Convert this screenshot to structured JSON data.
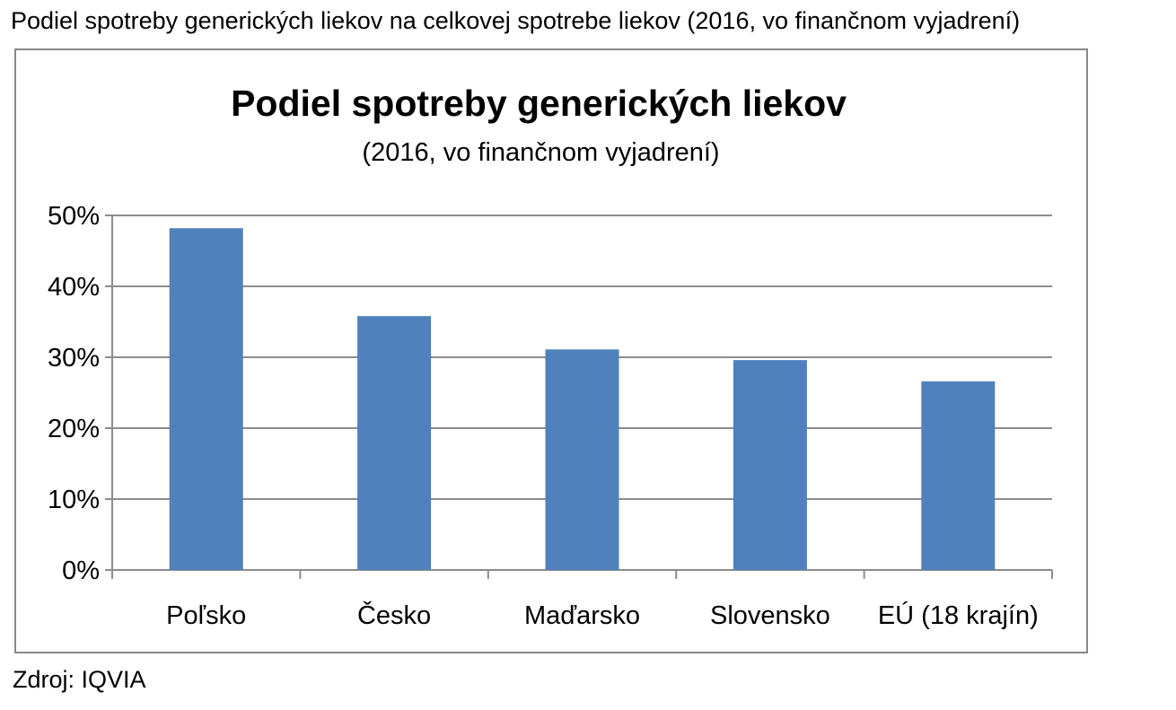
{
  "caption": "Podiel spotreby generických liekov na celkovej spotrebe liekov (2016, vo finančnom vyjadrení)",
  "source": "Zdroj: IQVIA",
  "chart_data": {
    "type": "bar",
    "title": "Podiel spotreby generických liekov",
    "subtitle": "(2016, vo finančnom vyjadrení)",
    "categories": [
      "Poľsko",
      "Česko",
      "Maďarsko",
      "Slovensko",
      "EÚ (18 krajín)"
    ],
    "values": [
      48.2,
      35.8,
      31.1,
      29.6,
      26.6
    ],
    "ylim": [
      0,
      50
    ],
    "yticks": [
      0,
      10,
      20,
      30,
      40,
      50
    ],
    "ytick_labels": [
      "0%",
      "10%",
      "20%",
      "30%",
      "40%",
      "50%"
    ],
    "grid": true,
    "bar_color": "#4f81bd",
    "grid_color": "#8c8c8c"
  }
}
